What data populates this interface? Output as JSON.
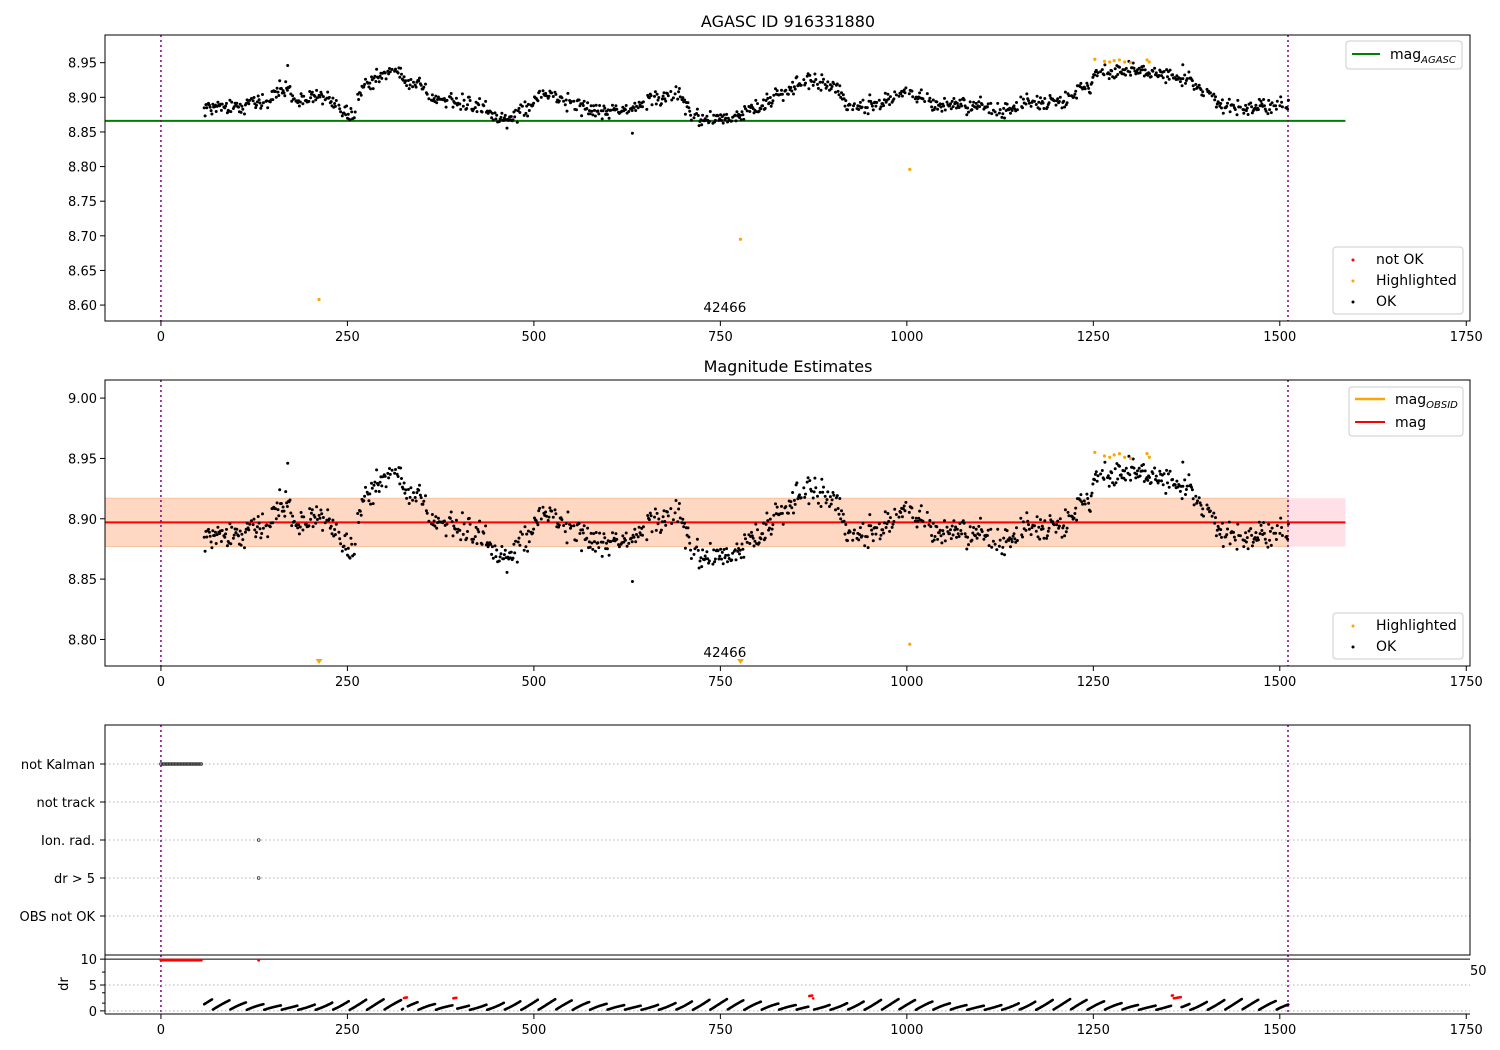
{
  "figure": {
    "title_top": "AGASC ID 916331880",
    "title_middle": "Magnitude Estimates",
    "obsid_label": "42466"
  },
  "colors": {
    "ok": "#000000",
    "highlighted": "#ffa500",
    "not_ok": "#ff0000",
    "mag_agasc": "#008000",
    "mag_obsid": "#ffa500",
    "mag": "#ff0000",
    "obs_boundary": "#800080",
    "band_pink": "#ffe0e6",
    "band_orange": "#ffd8c4"
  },
  "legend_top_lines": [
    {
      "name": "mag",
      "sub": "AGASC"
    }
  ],
  "legend_top_points": [
    {
      "name": "not OK"
    },
    {
      "name": "Highlighted"
    },
    {
      "name": "OK"
    }
  ],
  "legend_mid_lines": [
    {
      "name": "mag",
      "sub": "OBSID"
    },
    {
      "name": "mag",
      "sub": ""
    }
  ],
  "legend_mid_points": [
    {
      "name": "Highlighted"
    },
    {
      "name": "OK"
    }
  ],
  "chart_data": [
    {
      "type": "scatter",
      "title": "AGASC ID 916331880",
      "xlim": [
        -75,
        1755
      ],
      "ylim": [
        8.577,
        8.99
      ],
      "xticks": [
        0,
        250,
        500,
        750,
        1000,
        1250,
        1500,
        1750
      ],
      "yticks": [
        8.6,
        8.65,
        8.7,
        8.75,
        8.8,
        8.85,
        8.9,
        8.95
      ],
      "mag_agasc": 8.866,
      "obs_boundaries": [
        0,
        1511
      ],
      "annotation": {
        "text": "42466",
        "x": 756
      },
      "ok_trend": [
        [
          58,
          8.885
        ],
        [
          100,
          8.886
        ],
        [
          140,
          8.895
        ],
        [
          170,
          8.915
        ],
        [
          180,
          8.895
        ],
        [
          215,
          8.902
        ],
        [
          255,
          8.875
        ],
        [
          275,
          8.92
        ],
        [
          310,
          8.935
        ],
        [
          340,
          8.92
        ],
        [
          375,
          8.898
        ],
        [
          420,
          8.888
        ],
        [
          460,
          8.868
        ],
        [
          485,
          8.88
        ],
        [
          515,
          8.905
        ],
        [
          560,
          8.888
        ],
        [
          600,
          8.877
        ],
        [
          640,
          8.885
        ],
        [
          665,
          8.898
        ],
        [
          690,
          8.905
        ],
        [
          720,
          8.87
        ],
        [
          760,
          8.868
        ],
        [
          800,
          8.885
        ],
        [
          830,
          8.905
        ],
        [
          870,
          8.925
        ],
        [
          905,
          8.915
        ],
        [
          925,
          8.885
        ],
        [
          960,
          8.89
        ],
        [
          1000,
          8.908
        ],
        [
          1040,
          8.89
        ],
        [
          1100,
          8.888
        ],
        [
          1130,
          8.88
        ],
        [
          1160,
          8.892
        ],
        [
          1205,
          8.895
        ],
        [
          1240,
          8.915
        ],
        [
          1262,
          8.938
        ],
        [
          1300,
          8.938
        ],
        [
          1330,
          8.935
        ],
        [
          1375,
          8.925
        ],
        [
          1400,
          8.905
        ],
        [
          1425,
          8.885
        ],
        [
          1470,
          8.886
        ],
        [
          1512,
          8.89
        ]
      ],
      "highlighted": [
        [
          212,
          8.608
        ],
        [
          777,
          8.695
        ],
        [
          1004,
          8.796
        ],
        [
          1252,
          8.955
        ],
        [
          1265,
          8.952
        ],
        [
          1272,
          8.951
        ],
        [
          1278,
          8.953
        ],
        [
          1285,
          8.954
        ],
        [
          1292,
          8.951
        ],
        [
          1300,
          8.95
        ],
        [
          1322,
          8.954
        ],
        [
          1325,
          8.951
        ]
      ]
    },
    {
      "type": "scatter",
      "title": "Magnitude Estimates",
      "xlim": [
        -75,
        1755
      ],
      "ylim": [
        8.778,
        9.015
      ],
      "xticks": [
        0,
        250,
        500,
        750,
        1000,
        1250,
        1500,
        1750
      ],
      "yticks": [
        8.8,
        8.85,
        8.9,
        8.95,
        9.0
      ],
      "mag": 8.897,
      "band_pink": [
        8.877,
        8.917
      ],
      "band_orange": [
        8.877,
        8.917
      ],
      "band_orange_xrange": [
        -75,
        1511
      ],
      "obs_boundaries": [
        0,
        1511
      ],
      "annotation": {
        "text": "42466",
        "x": 756
      },
      "highlighted_markers": [
        212,
        777
      ]
    },
    {
      "type": "scatter",
      "title": "",
      "xlim": [
        -75,
        1755
      ],
      "xticks": [
        0,
        250,
        500,
        750,
        1000,
        1250,
        1500,
        1750
      ],
      "flag_rows": [
        "not Kalman",
        "not track",
        "Ion. rad.",
        "dr > 5",
        "OBS not OK"
      ],
      "flag_points": {
        "not Kalman": {
          "x_range": [
            0,
            55
          ]
        },
        "Ion. rad.": {
          "x": [
            131
          ]
        },
        "dr > 5": {
          "x": [
            131
          ]
        }
      },
      "dr_ylabel": "dr",
      "dr_yticks": [
        0,
        5,
        10
      ],
      "dr_ylim": [
        -0.6,
        10.8
      ],
      "dr_high": {
        "value": 9.8,
        "x_range": [
          0,
          55
        ],
        "extra_x": [
          131
        ]
      },
      "dr_trend_max": 2.6,
      "dr_red_segments": [
        [
          325,
          330
        ],
        [
          392,
          397
        ],
        [
          868,
          875
        ],
        [
          1355,
          1368
        ]
      ],
      "clipped_label": "50"
    }
  ]
}
